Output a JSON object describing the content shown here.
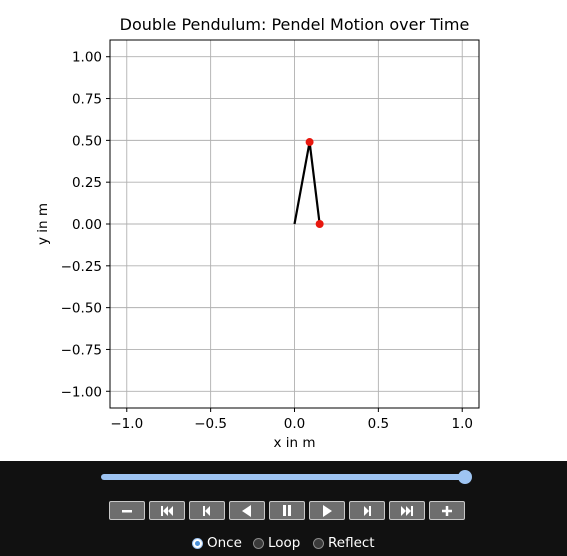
{
  "chart_data": {
    "type": "line",
    "title": "Double Pendulum: Pendel Motion over Time",
    "xlabel": "x in m",
    "ylabel": "y in m",
    "xlim": [
      -1.1,
      1.1
    ],
    "ylim": [
      -1.1,
      1.1
    ],
    "x_ticks": [
      -1.0,
      -0.5,
      0.0,
      0.5,
      1.0
    ],
    "x_tick_labels": [
      "−1.0",
      "−0.5",
      "0.0",
      "0.5",
      "1.0"
    ],
    "y_ticks": [
      1.0,
      0.75,
      0.5,
      0.25,
      0.0,
      -0.25,
      -0.5,
      -0.75,
      -1.0
    ],
    "y_tick_labels": [
      "1.00",
      "0.75",
      "0.50",
      "0.25",
      "0.00",
      "−0.25",
      "−0.50",
      "−0.75",
      "−1.00"
    ],
    "grid": true,
    "series": [
      {
        "x": [
          0.0,
          0.09,
          0.15
        ],
        "y": [
          0.0,
          0.49,
          0.0
        ],
        "color": "#000000"
      }
    ],
    "points": [
      {
        "x": 0.09,
        "y": 0.49,
        "color": "#e8170e"
      },
      {
        "x": 0.15,
        "y": 0.0,
        "color": "#e8170e"
      }
    ]
  },
  "controls": {
    "slider_value": 1.0,
    "buttons": [
      {
        "name": "decrease-speed-button",
        "icon": "minus-icon"
      },
      {
        "name": "first-frame-button",
        "icon": "skip-to-first-icon"
      },
      {
        "name": "previous-frame-button",
        "icon": "step-back-icon"
      },
      {
        "name": "play-reverse-button",
        "icon": "play-reverse-icon"
      },
      {
        "name": "pause-button",
        "icon": "pause-icon"
      },
      {
        "name": "play-button",
        "icon": "play-icon"
      },
      {
        "name": "next-frame-button",
        "icon": "step-forward-icon"
      },
      {
        "name": "last-frame-button",
        "icon": "skip-to-last-icon"
      },
      {
        "name": "increase-speed-button",
        "icon": "plus-icon"
      }
    ],
    "loop_modes": [
      {
        "label": "Once",
        "checked": true
      },
      {
        "label": "Loop",
        "checked": false
      },
      {
        "label": "Reflect",
        "checked": false
      }
    ]
  },
  "colors": {
    "accent": "#9ec4f2",
    "control_bar": "#111111",
    "button": "#6e6e6e",
    "marker": "#e8170e"
  }
}
